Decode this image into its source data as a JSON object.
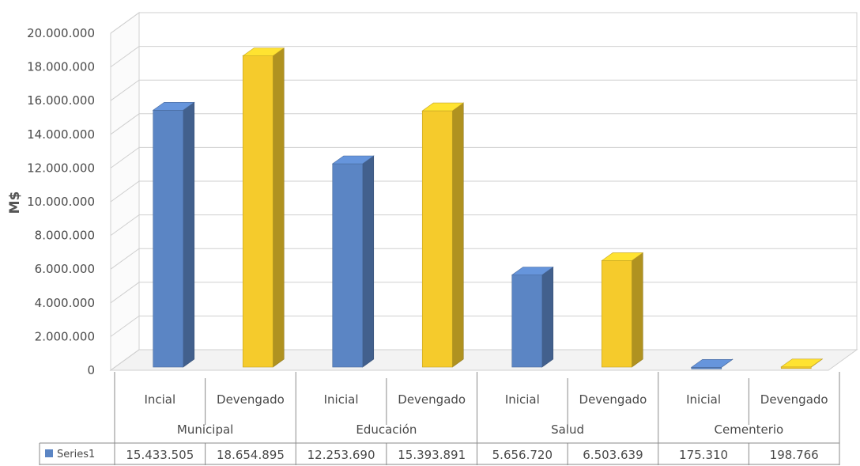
{
  "chart_data": {
    "type": "bar",
    "ylabel": "M$",
    "ylim": [
      0,
      20000000
    ],
    "yticks": [
      "0",
      "2.000.000",
      "4.000.000",
      "6.000.000",
      "8.000.000",
      "10.000.000",
      "12.000.000",
      "14.000.000",
      "16.000.000",
      "18.000.000",
      "20.000.000"
    ],
    "groups": [
      "Municipal",
      "Educación",
      "Salud",
      "Cementerio"
    ],
    "categories": [
      "Incial",
      "Devengado",
      "Inicial",
      "Devengado",
      "Inicial",
      "Devengado",
      "Inicial",
      "Devengado"
    ],
    "series": [
      {
        "name": "Series1",
        "values": [
          15433505,
          18654895,
          12253690,
          15393891,
          5656720,
          6503639,
          175310,
          198766
        ],
        "value_labels": [
          "15.433.505",
          "18.654.895",
          "12.253.690",
          "15.393.891",
          "5.656.720",
          "6.503.639",
          "175.310",
          "198.766"
        ]
      }
    ],
    "bar_colors": [
      "#5b85c4",
      "#f5cb2c",
      "#5b85c4",
      "#f5cb2c",
      "#5b85c4",
      "#f5cb2c",
      "#5b85c4",
      "#f5cb2c"
    ],
    "grid": true,
    "legend": "data-table"
  }
}
